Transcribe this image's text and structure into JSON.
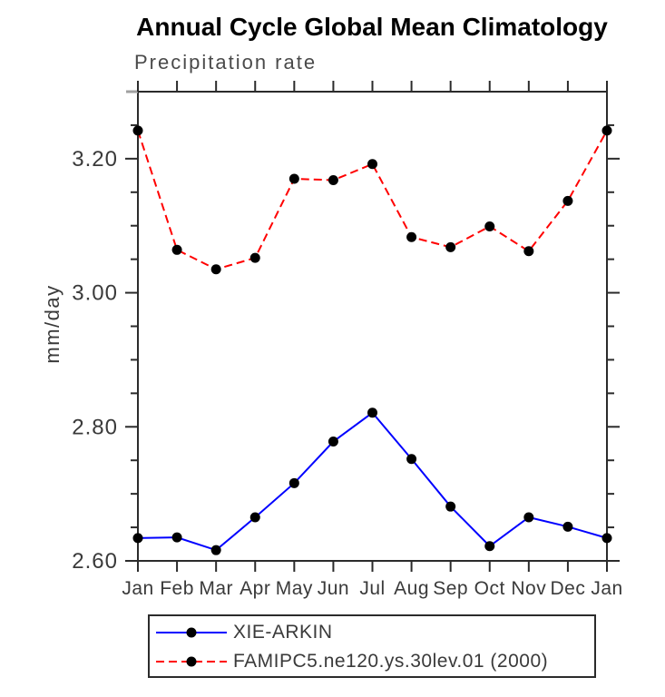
{
  "chart_data": {
    "type": "line",
    "title": "Annual Cycle Global Mean Climatology",
    "subtitle": "Precipitation rate",
    "ylabel": "mm/day",
    "xlabel": "",
    "categories": [
      "Jan",
      "Feb",
      "Mar",
      "Apr",
      "May",
      "Jun",
      "Jul",
      "Aug",
      "Sep",
      "Oct",
      "Nov",
      "Dec",
      "Jan"
    ],
    "ylim": [
      2.6,
      3.3
    ],
    "ytick_values": [
      2.6,
      2.8,
      3.0,
      3.2
    ],
    "ytick_labels": [
      "2.60",
      "2.80",
      "3.00",
      "3.20"
    ],
    "ytick_minor_step": 0.05,
    "grid": false,
    "legend_position": "bottom",
    "series": [
      {
        "name": "XIE-ARKIN",
        "color": "#0000ff",
        "style": "solid",
        "marker": "circle",
        "marker_color": "#000000",
        "values": [
          2.634,
          2.635,
          2.616,
          2.665,
          2.716,
          2.778,
          2.821,
          2.752,
          2.681,
          2.622,
          2.665,
          2.651,
          2.634
        ]
      },
      {
        "name": "FAMIPC5.ne120.ys.30lev.01 (2000)",
        "color": "#ff0000",
        "style": "dashed",
        "marker": "circle",
        "marker_color": "#000000",
        "values": [
          3.242,
          3.064,
          3.035,
          3.052,
          3.17,
          3.168,
          3.192,
          3.083,
          3.068,
          3.099,
          3.062,
          3.137,
          3.242
        ]
      }
    ]
  },
  "colors": {
    "axis": "#2b2b2b",
    "tick_label": "#3a3a3a",
    "title": "#000000",
    "subtitle": "#4a4a4a",
    "legend_border": "#2b2b2b",
    "corner_artifact": "#a0a0a0"
  }
}
